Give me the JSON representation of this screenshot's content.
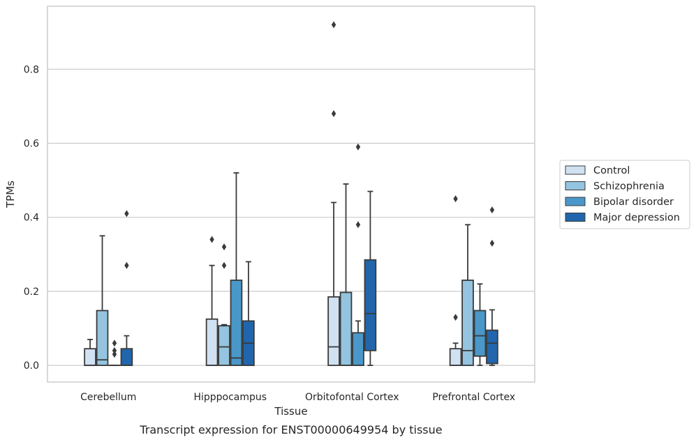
{
  "chart_data": {
    "type": "box",
    "title": "",
    "xlabel": "Tissue",
    "ylabel": "TPMs",
    "caption": "Transcript expression for ENST00000649954 by tissue",
    "ylim": [
      -0.045,
      0.97
    ],
    "yticks": [
      0.0,
      0.2,
      0.4,
      0.6,
      0.8
    ],
    "ytick_labels": [
      "0.0",
      "0.2",
      "0.4",
      "0.6",
      "0.8"
    ],
    "grid": "horizontal",
    "legend_position": "right",
    "categories": [
      "Cerebellum",
      "Hipppocampus",
      "Orbitofontal Cortex",
      "Prefrontal Cortex"
    ],
    "series": [
      {
        "name": "Control",
        "color": "#d0e1f2",
        "boxes": [
          {
            "whisker_low": 0.0,
            "q1": 0.0,
            "median": 0.0,
            "q3": 0.045,
            "whisker_high": 0.07,
            "outliers": []
          },
          {
            "whisker_low": 0.0,
            "q1": 0.0,
            "median": 0.0,
            "q3": 0.125,
            "whisker_high": 0.27,
            "outliers": [
              0.34
            ]
          },
          {
            "whisker_low": 0.0,
            "q1": 0.0,
            "median": 0.05,
            "q3": 0.185,
            "whisker_high": 0.44,
            "outliers": [
              0.68,
              0.92
            ]
          },
          {
            "whisker_low": 0.0,
            "q1": 0.0,
            "median": 0.0,
            "q3": 0.045,
            "whisker_high": 0.06,
            "outliers": [
              0.13,
              0.45
            ]
          }
        ]
      },
      {
        "name": "Schizophrenia",
        "color": "#94c4df",
        "boxes": [
          {
            "whisker_low": 0.0,
            "q1": 0.0,
            "median": 0.015,
            "q3": 0.148,
            "whisker_high": 0.35,
            "outliers": []
          },
          {
            "whisker_low": 0.0,
            "q1": 0.0,
            "median": 0.05,
            "q3": 0.107,
            "whisker_high": 0.11,
            "outliers": [
              0.27,
              0.32
            ]
          },
          {
            "whisker_low": 0.0,
            "q1": 0.0,
            "median": 0.0,
            "q3": 0.197,
            "whisker_high": 0.49,
            "outliers": []
          },
          {
            "whisker_low": 0.0,
            "q1": 0.0,
            "median": 0.04,
            "q3": 0.23,
            "whisker_high": 0.38,
            "outliers": []
          }
        ]
      },
      {
        "name": "Bipolar disorder",
        "color": "#4a98c9",
        "boxes": [
          {
            "whisker_low": 0.0,
            "q1": 0.0,
            "median": 0.0,
            "q3": 0.0,
            "whisker_high": 0.0,
            "outliers": [
              0.03,
              0.04,
              0.06
            ]
          },
          {
            "whisker_low": 0.0,
            "q1": 0.0,
            "median": 0.02,
            "q3": 0.23,
            "whisker_high": 0.52,
            "outliers": []
          },
          {
            "whisker_low": 0.0,
            "q1": 0.0,
            "median": 0.0,
            "q3": 0.088,
            "whisker_high": 0.12,
            "outliers": [
              0.38,
              0.59
            ]
          },
          {
            "whisker_low": 0.0,
            "q1": 0.025,
            "median": 0.08,
            "q3": 0.148,
            "whisker_high": 0.22,
            "outliers": []
          }
        ]
      },
      {
        "name": "Major depression",
        "color": "#2166ac",
        "boxes": [
          {
            "whisker_low": 0.0,
            "q1": 0.0,
            "median": 0.0,
            "q3": 0.045,
            "whisker_high": 0.08,
            "outliers": [
              0.27,
              0.41
            ]
          },
          {
            "whisker_low": 0.0,
            "q1": 0.0,
            "median": 0.06,
            "q3": 0.12,
            "whisker_high": 0.28,
            "outliers": []
          },
          {
            "whisker_low": 0.0,
            "q1": 0.04,
            "median": 0.14,
            "q3": 0.285,
            "whisker_high": 0.47,
            "outliers": []
          },
          {
            "whisker_low": 0.0,
            "q1": 0.005,
            "median": 0.06,
            "q3": 0.095,
            "whisker_high": 0.15,
            "outliers": [
              0.33,
              0.42
            ]
          }
        ]
      }
    ]
  }
}
